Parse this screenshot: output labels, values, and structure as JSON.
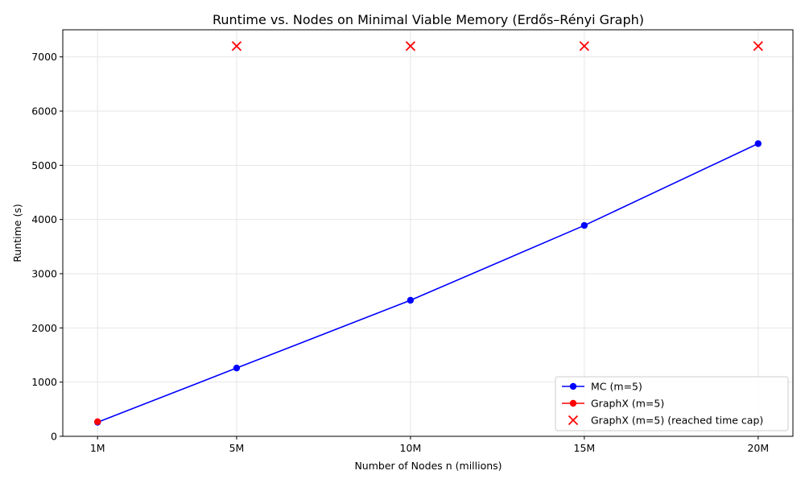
{
  "chart_data": {
    "type": "line",
    "title": "Runtime vs. Nodes on Minimal Viable Memory (Erdős–Rényi Graph)",
    "xlabel": "Number of Nodes n (millions)",
    "ylabel": "Runtime (s)",
    "x": [
      1,
      5,
      10,
      15,
      20
    ],
    "x_tick_labels": [
      "1M",
      "5M",
      "10M",
      "15M",
      "20M"
    ],
    "xlim": [
      0,
      21
    ],
    "ylim": [
      0,
      7500
    ],
    "y_ticks": [
      0,
      1000,
      2000,
      3000,
      4000,
      5000,
      6000,
      7000
    ],
    "grid": true,
    "legend_position": "lower-right",
    "series": [
      {
        "name": "MC (m=5)",
        "kind": "line-marker",
        "color": "#0000ff",
        "x": [
          1,
          5,
          10,
          15,
          20
        ],
        "values": [
          260,
          1260,
          2510,
          3890,
          5400
        ]
      },
      {
        "name": "GraphX (m=5)",
        "kind": "line-marker",
        "color": "#ff0000",
        "x": [
          1
        ],
        "values": [
          270
        ]
      },
      {
        "name": "GraphX (m=5) (reached time cap)",
        "kind": "x-marker",
        "color": "#ff0000",
        "x": [
          5,
          10,
          15,
          20
        ],
        "values": [
          7200,
          7200,
          7200,
          7200
        ]
      }
    ]
  }
}
